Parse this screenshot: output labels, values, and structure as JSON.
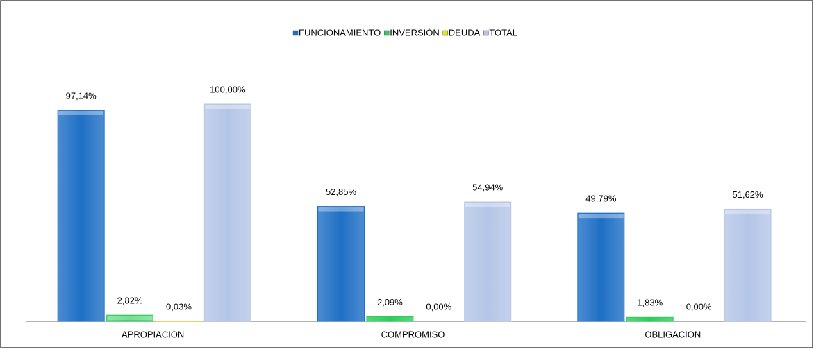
{
  "chart_data": {
    "type": "bar",
    "categories": [
      "APROPIACIÓN",
      "COMPROMISO",
      "OBLIGACION"
    ],
    "series": [
      {
        "name": "FUNCIONAMIENTO",
        "color": "#1f6fc5",
        "values": [
          97.14,
          52.85,
          49.79
        ],
        "value_labels": [
          "97,14%",
          "52,85%",
          "49,79%"
        ]
      },
      {
        "name": "INVERSIÓN",
        "color": "#2ecc5a",
        "values": [
          2.82,
          2.09,
          1.83
        ],
        "value_labels": [
          "2,82%",
          "2,09%",
          "1,83%"
        ]
      },
      {
        "name": "DEUDA",
        "color": "#e8e800",
        "values": [
          0.03,
          0.0,
          0.0
        ],
        "value_labels": [
          "0,03%",
          "0,00%",
          "0,00%"
        ]
      },
      {
        "name": "TOTAL",
        "color": "#b4c6e7",
        "values": [
          100.0,
          54.94,
          51.62
        ],
        "value_labels": [
          "100,00%",
          "54,94%",
          "51,62%"
        ]
      }
    ],
    "ylim": [
      0,
      100
    ],
    "legend": "top"
  }
}
